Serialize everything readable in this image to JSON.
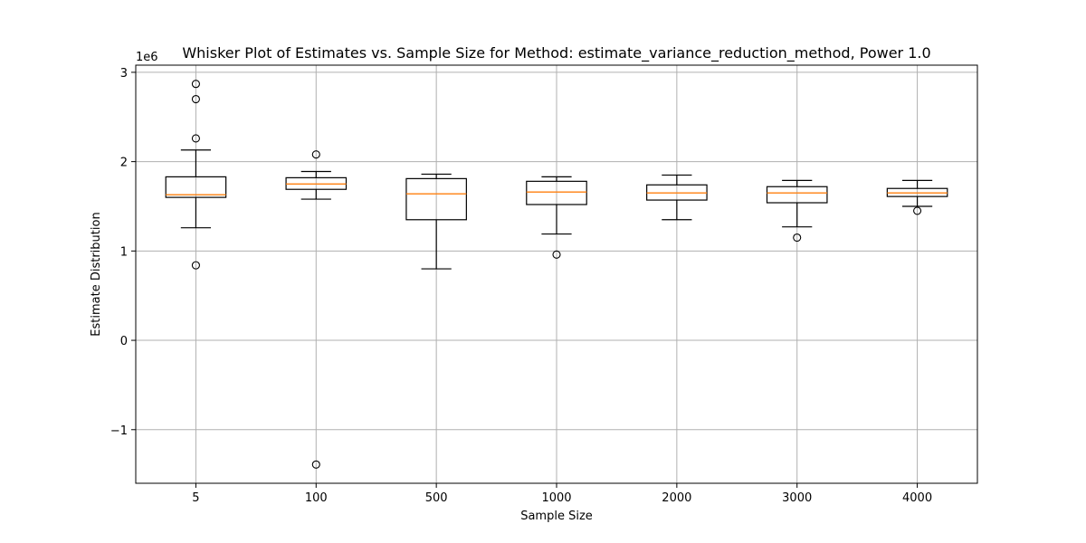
{
  "chart_data": {
    "type": "boxplot",
    "title": "Whisker Plot of Estimates vs. Sample Size for Method: estimate_variance_reduction_method, Power 1.0",
    "xlabel": "Sample Size",
    "ylabel": "Estimate Distribution",
    "y_offset_label": "1e6",
    "ylim": [
      -1.6,
      3.08
    ],
    "y_ticks": [
      -1,
      0,
      1,
      2,
      3
    ],
    "y_tick_labels": [
      "−1",
      "0",
      "1",
      "2",
      "3"
    ],
    "grid": true,
    "categories": [
      "5",
      "100",
      "500",
      "1000",
      "2000",
      "3000",
      "4000"
    ],
    "boxes": [
      {
        "label": "5",
        "whisker_low": 1.26,
        "q1": 1.6,
        "median": 1.63,
        "q3": 1.83,
        "whisker_high": 2.13,
        "fliers": [
          2.87,
          2.7,
          2.26,
          0.84
        ]
      },
      {
        "label": "100",
        "whisker_low": 1.58,
        "q1": 1.69,
        "median": 1.75,
        "q3": 1.82,
        "whisker_high": 1.89,
        "fliers": [
          2.08,
          -1.39
        ]
      },
      {
        "label": "500",
        "whisker_low": 0.8,
        "q1": 1.35,
        "median": 1.64,
        "q3": 1.81,
        "whisker_high": 1.86,
        "fliers": []
      },
      {
        "label": "1000",
        "whisker_low": 1.19,
        "q1": 1.52,
        "median": 1.66,
        "q3": 1.78,
        "whisker_high": 1.83,
        "fliers": [
          0.96
        ]
      },
      {
        "label": "2000",
        "whisker_low": 1.35,
        "q1": 1.57,
        "median": 1.65,
        "q3": 1.74,
        "whisker_high": 1.85,
        "fliers": []
      },
      {
        "label": "3000",
        "whisker_low": 1.27,
        "q1": 1.54,
        "median": 1.65,
        "q3": 1.72,
        "whisker_high": 1.79,
        "fliers": [
          1.15
        ]
      },
      {
        "label": "4000",
        "whisker_low": 1.5,
        "q1": 1.61,
        "median": 1.65,
        "q3": 1.7,
        "whisker_high": 1.79,
        "fliers": [
          1.45
        ]
      }
    ],
    "colors": {
      "box": "#000000",
      "median": "#ff7f0e",
      "grid": "#b0b0b0"
    }
  }
}
